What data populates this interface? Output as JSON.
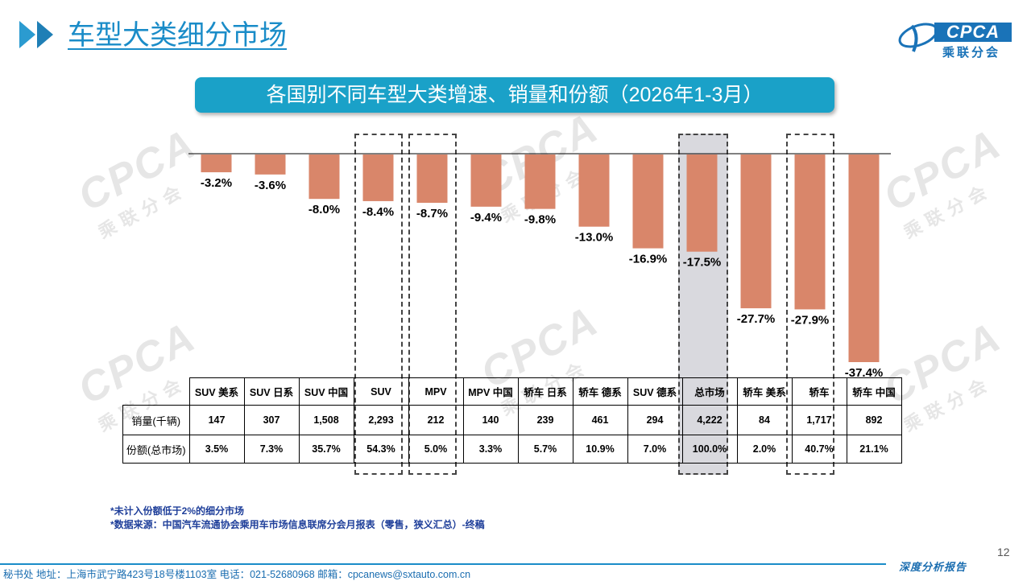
{
  "header": {
    "title": "车型大类细分市场",
    "logo_text": "CPCA",
    "logo_sub": "乘联分会"
  },
  "banner": "各国别不同车型大类增速、销量和份额（2026年1-3月）",
  "watermark": {
    "main": "CPCA",
    "sub": "乘联分会"
  },
  "chart_data": {
    "type": "bar",
    "title": "各国别不同车型大类增速、销量和份额（2026年1-3月）",
    "categories": [
      "SUV 美系",
      "SUV 日系",
      "SUV 中国",
      "SUV",
      "MPV",
      "MPV 中国",
      "轿车 日系",
      "轿车 德系",
      "SUV 德系",
      "总市场",
      "轿车 美系",
      "轿车",
      "轿车 中国"
    ],
    "series": [
      {
        "name": "增速",
        "values": [
          -3.2,
          -3.6,
          -8.0,
          -8.4,
          -8.7,
          -9.4,
          -9.8,
          -13.0,
          -16.9,
          -17.5,
          -27.7,
          -27.9,
          -37.4
        ]
      }
    ],
    "data_labels": [
      "-3.2%",
      "-3.6%",
      "-8.0%",
      "-8.4%",
      "-8.7%",
      "-9.4%",
      "-9.8%",
      "-13.0%",
      "-16.9%",
      "-17.5%",
      "-27.7%",
      "-27.9%",
      "-37.4%"
    ],
    "bar_color": "#d9866a",
    "ylim": [
      -37.4,
      0
    ],
    "highlight_dashed": [
      "SUV",
      "MPV",
      "轿车"
    ],
    "highlight_shaded": [
      "总市场"
    ]
  },
  "table": {
    "row_labels": [
      "销量(千辆)",
      "份额(总市场)"
    ],
    "volume": [
      "147",
      "307",
      "1,508",
      "2,293",
      "212",
      "140",
      "239",
      "461",
      "294",
      "4,222",
      "84",
      "1,717",
      "892"
    ],
    "share": [
      "3.5%",
      "7.3%",
      "35.7%",
      "54.3%",
      "5.0%",
      "3.3%",
      "5.7%",
      "10.9%",
      "7.0%",
      "100.0%",
      "2.0%",
      "40.7%",
      "21.1%"
    ]
  },
  "notes": [
    "*未计入份额低于2%的细分市场",
    "*数据来源：中国汽车流通协会乘用车市场信息联席分会月报表（零售，狭义汇总）-终稿"
  ],
  "footer": {
    "address": "秘书处   地址：上海市武宁路423号18号楼1103室  电话：021-52680968   邮箱：cpcanews@sxtauto.com.cn",
    "right": "深度分析报告",
    "page_number": "12"
  }
}
